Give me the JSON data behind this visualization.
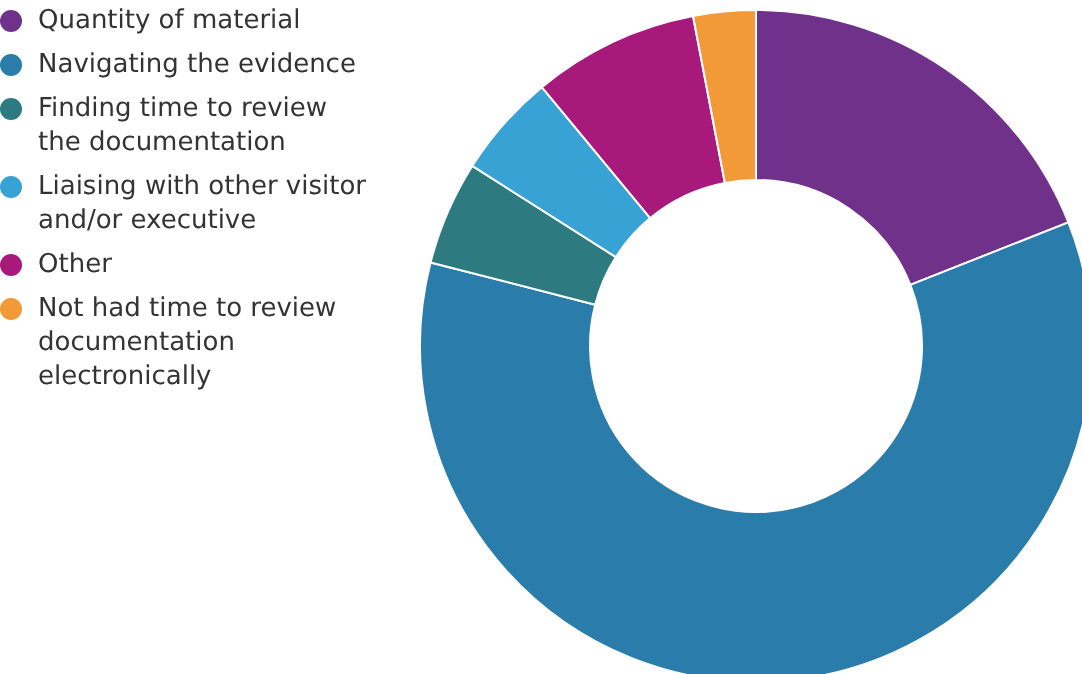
{
  "chart_data": {
    "type": "donut",
    "categories": [
      "Quantity of material",
      "Navigating the evidence",
      "Finding time to review the documentation",
      "Liaising with other visitor and/or executive",
      "Other",
      "Not had time to review documentation electronically"
    ],
    "values": [
      19,
      60,
      5,
      5,
      8,
      3
    ],
    "colors": [
      "#70318b",
      "#2a7dab",
      "#2d7b80",
      "#37a2d3",
      "#a71a7c",
      "#f39a38"
    ],
    "legend": "left"
  }
}
